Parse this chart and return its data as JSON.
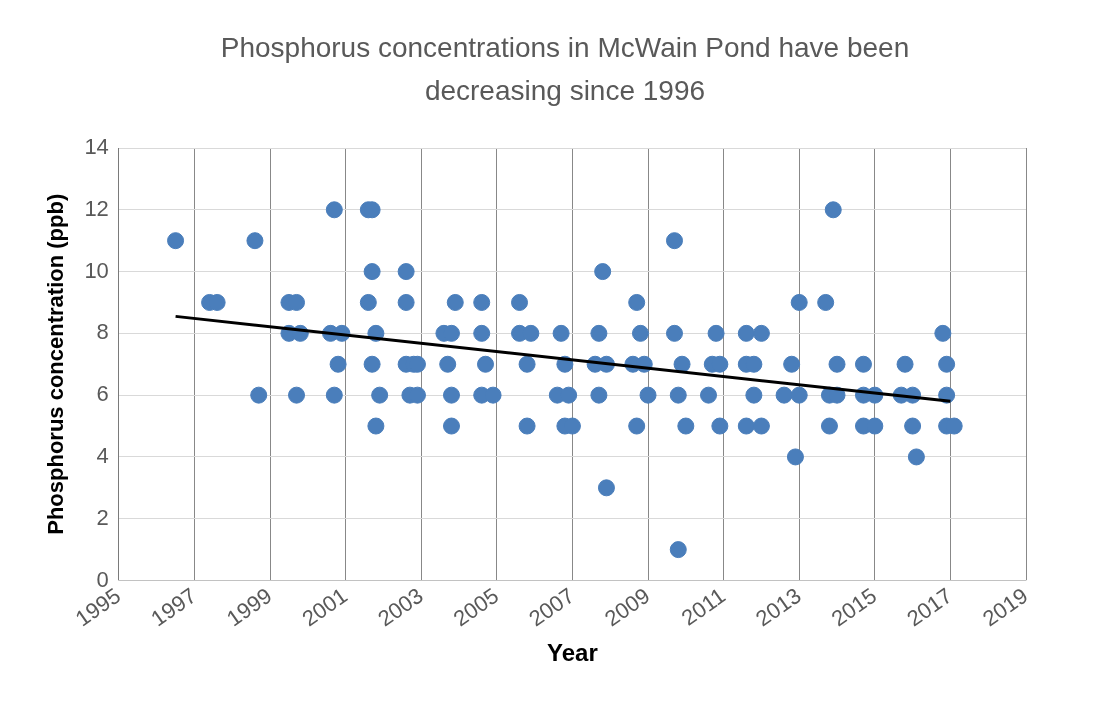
{
  "chart_data": {
    "type": "scatter",
    "title": "Phosphorus concentrations in McWain Pond have been decreasing since 1996",
    "xlabel": "Year",
    "ylabel": "Phosphorus concentration (ppb)",
    "xlim": [
      1995,
      2019
    ],
    "xticks": [
      1995,
      1997,
      1999,
      2001,
      2003,
      2005,
      2007,
      2009,
      2011,
      2013,
      2015,
      2017,
      2019
    ],
    "ylim": [
      0,
      14
    ],
    "yticks": [
      0,
      2,
      4,
      6,
      8,
      10,
      12,
      14
    ],
    "grid": true,
    "legend": false,
    "marker": "circle",
    "series": [
      {
        "color": "#4a7ebb",
        "x": [
          1996.5,
          1997.4,
          1997.6,
          1998.6,
          1998.7,
          1999.5,
          1999.7,
          1999.5,
          1999.8,
          1999.7,
          2000.7,
          2000.6,
          2000.9,
          2000.8,
          2000.7,
          2001.6,
          2001.7,
          2001.7,
          2001.6,
          2001.8,
          2001.7,
          2001.9,
          2001.8,
          2002.6,
          2002.6,
          2002.6,
          2002.8,
          2002.9,
          2002.7,
          2002.9,
          2003.6,
          2003.8,
          2003.9,
          2003.7,
          2003.8,
          2003.8,
          2004.6,
          2004.6,
          2004.7,
          2004.6,
          2004.9,
          2005.6,
          2005.6,
          2005.9,
          2005.8,
          2005.8,
          2006.7,
          2006.8,
          2006.6,
          2006.9,
          2006.8,
          2007.0,
          2007.8,
          2007.7,
          2007.6,
          2007.9,
          2007.7,
          2007.9,
          2008.7,
          2008.8,
          2008.6,
          2008.9,
          2009.0,
          2008.7,
          2009.7,
          2009.7,
          2009.9,
          2009.8,
          2010.0,
          2009.8,
          2010.8,
          2010.7,
          2010.9,
          2010.6,
          2010.9,
          2011.6,
          2012.0,
          2011.6,
          2011.8,
          2011.8,
          2011.6,
          2012.0,
          2012.8,
          2012.6,
          2013.0,
          2012.9,
          2013.0,
          2013.7,
          2013.9,
          2014.0,
          2013.8,
          2014.0,
          2013.8,
          2014.7,
          2014.7,
          2015.0,
          2014.7,
          2015.0,
          2015.8,
          2015.7,
          2016.0,
          2016.0,
          2016.1,
          2016.8,
          2016.9,
          2016.9,
          2016.9,
          2017.1
        ],
        "values": [
          11,
          9,
          9,
          11,
          6,
          9,
          9,
          8,
          8,
          6,
          12,
          8,
          8,
          7,
          6,
          12,
          12,
          10,
          9,
          8,
          7,
          6,
          5,
          10,
          9,
          7,
          7,
          7,
          6,
          6,
          8,
          8,
          9,
          7,
          6,
          5,
          9,
          8,
          7,
          6,
          6,
          9,
          8,
          8,
          7,
          5,
          8,
          7,
          6,
          6,
          5,
          5,
          10,
          8,
          7,
          7,
          6,
          3,
          9,
          8,
          7,
          7,
          6,
          5,
          11,
          8,
          7,
          6,
          5,
          1,
          8,
          7,
          7,
          6,
          5,
          8,
          8,
          7,
          7,
          6,
          5,
          5,
          7,
          6,
          6,
          4,
          9,
          9,
          12,
          7,
          6,
          6,
          5,
          7,
          6,
          6,
          5,
          5,
          7,
          6,
          6,
          5,
          4,
          8,
          7,
          6,
          5,
          5
        ]
      },
      {
        "type": "line",
        "color": "#000000",
        "marker": "none",
        "x": [
          1996.5,
          2017.0
        ],
        "values": [
          8.55,
          5.8
        ]
      }
    ]
  }
}
